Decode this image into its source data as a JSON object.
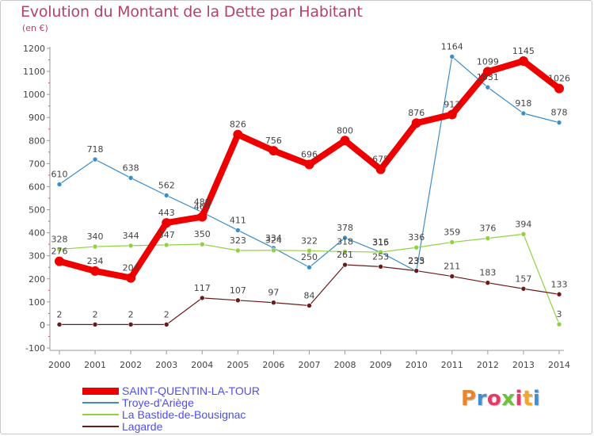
{
  "title": "Evolution du Montant de la Dette par Habitant",
  "subtitle": "(en €)",
  "logo_text": "Proxiti",
  "chart_data": {
    "type": "line",
    "x": [
      2000,
      2001,
      2002,
      2003,
      2004,
      2005,
      2006,
      2007,
      2008,
      2009,
      2010,
      2011,
      2012,
      2013,
      2014
    ],
    "ylim": [
      -100,
      1200
    ],
    "yticks": [
      -100,
      0,
      100,
      200,
      300,
      400,
      500,
      600,
      700,
      800,
      900,
      1000,
      1100,
      1200
    ],
    "grid": false,
    "legend_position": "bottom-left",
    "series": [
      {
        "name": "SAINT-QUENTIN-LA-TOUR",
        "color": "#ee0000",
        "values": [
          276,
          234,
          204,
          443,
          469,
          826,
          756,
          696,
          800,
          675,
          876,
          913,
          1099,
          1145,
          1026
        ]
      },
      {
        "name": "Troye-d'Ariège",
        "color": "#3d8dc8",
        "values": [
          610,
          718,
          638,
          562,
          489,
          411,
          334,
          250,
          378,
          315,
          233,
          1164,
          1031,
          918,
          878
        ]
      },
      {
        "name": "La Bastide-de-Bousignac",
        "color": "#8fd141",
        "values": [
          328,
          340,
          344,
          347,
          350,
          323,
          324,
          322,
          318,
          316,
          336,
          359,
          376,
          394,
          3
        ]
      },
      {
        "name": "Lagarde",
        "color": "#6b1a1a",
        "values": [
          2,
          2,
          2,
          2,
          117,
          107,
          97,
          84,
          261,
          253,
          235,
          211,
          183,
          157,
          133
        ]
      }
    ]
  }
}
